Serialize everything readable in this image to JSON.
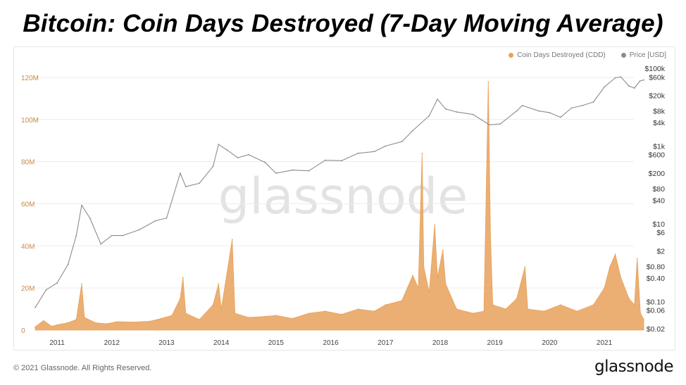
{
  "headline": "Bitcoin: Coin Days Destroyed  (7-Day Moving Average)",
  "watermark": "glassnode",
  "footer": {
    "copyright": "© 2021 Glassnode. All Rights Reserved.",
    "logo": "glassnode"
  },
  "colors": {
    "cdd": "#e8a15a",
    "price": "#8c8c8c",
    "left_axis": "#c68a4a",
    "right_axis": "#333333",
    "grid": "#ececec"
  },
  "chart_data": {
    "type": "area",
    "legend": [
      {
        "name": "Coin Days Destroyed (CDD)",
        "color": "#e8a15a"
      },
      {
        "name": "Price [USD]",
        "color": "#8c8c8c"
      }
    ],
    "legend_position": "top-right",
    "grid": true,
    "x_tick_labels": [
      "2011",
      "2012",
      "2013",
      "2014",
      "2015",
      "2016",
      "2017",
      "2018",
      "2019",
      "2020",
      "2021"
    ],
    "x_range": [
      2010.6,
      2021.72
    ],
    "left_axis": {
      "ticks": [
        0,
        20000000,
        40000000,
        60000000,
        80000000,
        100000000,
        120000000
      ],
      "tick_labels": [
        "0",
        "20M",
        "40M",
        "60M",
        "80M",
        "100M",
        "120M"
      ],
      "range": [
        0,
        125000000
      ]
    },
    "right_axis": {
      "scale": "log",
      "ticks": [
        0.02,
        0.06,
        0.1,
        0.4,
        0.8,
        2,
        6,
        10,
        40,
        80,
        200,
        600,
        1000,
        4000,
        8000,
        20000,
        60000,
        100000
      ],
      "tick_labels": [
        "$0.02",
        "$0.06",
        "$0.10",
        "$0.40",
        "$0.80",
        "$2",
        "$6",
        "$10",
        "$40",
        "$80",
        "$200",
        "$600",
        "$1k",
        "$4k",
        "$8k",
        "$20k",
        "$60k",
        "$100k"
      ],
      "range": [
        0.02,
        100000
      ]
    },
    "series": [
      {
        "name": "Coin Days Destroyed (CDD)",
        "axis": "left",
        "points": [
          [
            2010.6,
            1500000
          ],
          [
            2010.75,
            4500000
          ],
          [
            2010.9,
            1800000
          ],
          [
            2011.0,
            2500000
          ],
          [
            2011.2,
            3500000
          ],
          [
            2011.35,
            5000000
          ],
          [
            2011.45,
            22000000
          ],
          [
            2011.5,
            6000000
          ],
          [
            2011.7,
            3500000
          ],
          [
            2011.9,
            3000000
          ],
          [
            2012.1,
            4000000
          ],
          [
            2012.4,
            3800000
          ],
          [
            2012.7,
            4200000
          ],
          [
            2012.9,
            5500000
          ],
          [
            2013.1,
            7000000
          ],
          [
            2013.25,
            15000000
          ],
          [
            2013.3,
            25000000
          ],
          [
            2013.35,
            8000000
          ],
          [
            2013.6,
            5000000
          ],
          [
            2013.85,
            12000000
          ],
          [
            2013.95,
            22000000
          ],
          [
            2014.0,
            10000000
          ],
          [
            2014.2,
            43000000
          ],
          [
            2014.25,
            8000000
          ],
          [
            2014.5,
            6000000
          ],
          [
            2014.8,
            6500000
          ],
          [
            2015.0,
            7000000
          ],
          [
            2015.3,
            5500000
          ],
          [
            2015.6,
            8000000
          ],
          [
            2015.9,
            9000000
          ],
          [
            2016.2,
            7500000
          ],
          [
            2016.5,
            10000000
          ],
          [
            2016.8,
            9000000
          ],
          [
            2017.0,
            12000000
          ],
          [
            2017.3,
            14000000
          ],
          [
            2017.5,
            26000000
          ],
          [
            2017.6,
            20000000
          ],
          [
            2017.67,
            84000000
          ],
          [
            2017.7,
            30000000
          ],
          [
            2017.8,
            18000000
          ],
          [
            2017.9,
            50000000
          ],
          [
            2017.95,
            25000000
          ],
          [
            2018.05,
            38000000
          ],
          [
            2018.1,
            22000000
          ],
          [
            2018.3,
            10000000
          ],
          [
            2018.6,
            8000000
          ],
          [
            2018.8,
            9000000
          ],
          [
            2018.88,
            118000000
          ],
          [
            2018.92,
            45000000
          ],
          [
            2018.96,
            12000000
          ],
          [
            2019.2,
            10000000
          ],
          [
            2019.4,
            15000000
          ],
          [
            2019.55,
            30000000
          ],
          [
            2019.6,
            10000000
          ],
          [
            2019.9,
            9000000
          ],
          [
            2020.2,
            12000000
          ],
          [
            2020.5,
            9000000
          ],
          [
            2020.8,
            12000000
          ],
          [
            2021.0,
            20000000
          ],
          [
            2021.1,
            30000000
          ],
          [
            2021.2,
            36000000
          ],
          [
            2021.3,
            25000000
          ],
          [
            2021.45,
            15000000
          ],
          [
            2021.55,
            12000000
          ],
          [
            2021.6,
            34000000
          ],
          [
            2021.66,
            8000000
          ],
          [
            2021.72,
            5000000
          ]
        ]
      },
      {
        "name": "Price [USD]",
        "axis": "right",
        "points": [
          [
            2010.6,
            0.07
          ],
          [
            2010.8,
            0.2
          ],
          [
            2011.0,
            0.3
          ],
          [
            2011.2,
            0.9
          ],
          [
            2011.35,
            5
          ],
          [
            2011.45,
            30
          ],
          [
            2011.6,
            14
          ],
          [
            2011.8,
            3
          ],
          [
            2012.0,
            5
          ],
          [
            2012.2,
            5
          ],
          [
            2012.5,
            7
          ],
          [
            2012.8,
            12
          ],
          [
            2013.0,
            14
          ],
          [
            2013.25,
            200
          ],
          [
            2013.35,
            90
          ],
          [
            2013.6,
            110
          ],
          [
            2013.85,
            300
          ],
          [
            2013.95,
            1100
          ],
          [
            2014.1,
            800
          ],
          [
            2014.3,
            500
          ],
          [
            2014.5,
            600
          ],
          [
            2014.8,
            380
          ],
          [
            2015.0,
            200
          ],
          [
            2015.3,
            240
          ],
          [
            2015.6,
            230
          ],
          [
            2015.9,
            430
          ],
          [
            2016.2,
            420
          ],
          [
            2016.5,
            650
          ],
          [
            2016.8,
            720
          ],
          [
            2017.0,
            1000
          ],
          [
            2017.3,
            1300
          ],
          [
            2017.5,
            2500
          ],
          [
            2017.8,
            6000
          ],
          [
            2017.95,
            16000
          ],
          [
            2018.1,
            9000
          ],
          [
            2018.3,
            7500
          ],
          [
            2018.6,
            6500
          ],
          [
            2018.9,
            3500
          ],
          [
            2019.1,
            3700
          ],
          [
            2019.4,
            8000
          ],
          [
            2019.5,
            11000
          ],
          [
            2019.8,
            8000
          ],
          [
            2020.0,
            7200
          ],
          [
            2020.2,
            5500
          ],
          [
            2020.4,
            9500
          ],
          [
            2020.6,
            11000
          ],
          [
            2020.8,
            13500
          ],
          [
            2021.0,
            33000
          ],
          [
            2021.2,
            57000
          ],
          [
            2021.3,
            60000
          ],
          [
            2021.45,
            35000
          ],
          [
            2021.55,
            31000
          ],
          [
            2021.65,
            47000
          ],
          [
            2021.72,
            50000
          ]
        ]
      }
    ]
  }
}
